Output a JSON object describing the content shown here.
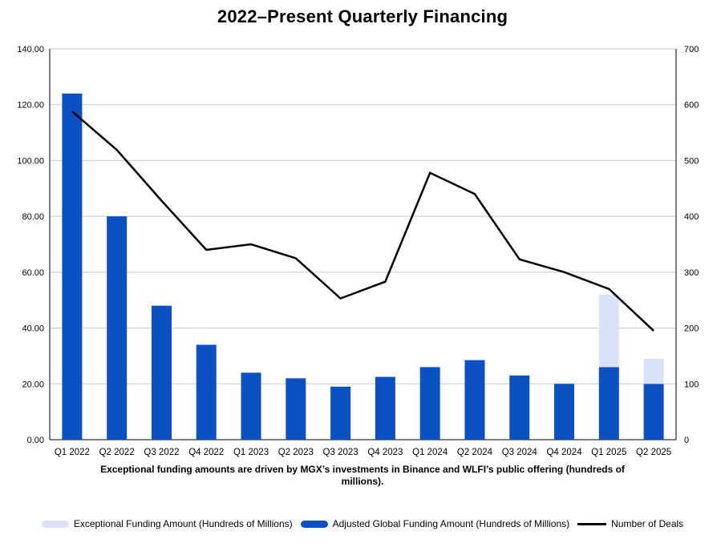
{
  "caption": {
    "line1": "Exceptional funding amounts are driven by MGX’s investments in Binance and WLFI’s public offering (hundreds of",
    "line2": "millions)."
  },
  "colors": {
    "plot_background": "#ffffff",
    "gridline": "#c9c9c9",
    "axis": "#000000"
  },
  "chart_data": {
    "type": "combo: stacked bar + line, dual y-axes",
    "title": "2022–Present Quarterly Financing",
    "note": "Exceptional funding amounts are driven by MGX’s investments in Binance and WLFI’s public offering (hundreds of millions).",
    "categories": [
      "Q1 2022",
      "Q2 2022",
      "Q3 2022",
      "Q4 2022",
      "Q1 2023",
      "Q2 2023",
      "Q3 2023",
      "Q4 2023",
      "Q1 2024",
      "Q2 2024",
      "Q3 2024",
      "Q4 2024",
      "Q1 2025",
      "Q2 2025"
    ],
    "series": [
      {
        "name": "Exceptional Funding Amount (Hundreds of Millions)",
        "type": "bar",
        "stack": 1,
        "axis": "left",
        "color": "#d8e3f8",
        "values": [
          0,
          0,
          0,
          0,
          0,
          0,
          0,
          0,
          0,
          0,
          0,
          0,
          26,
          9
        ]
      },
      {
        "name": "Adjusted Global Funding Amount (Hundreds of Millions)",
        "type": "bar",
        "stack": 0,
        "axis": "left",
        "color": "#0b51c4",
        "values": [
          124,
          80,
          48,
          34,
          24,
          22,
          19,
          22.5,
          26,
          28.5,
          23,
          20,
          26,
          20
        ]
      },
      {
        "name": "Number of Deals",
        "type": "line",
        "axis": "right",
        "color": "#000000",
        "values": [
          588,
          519,
          428,
          340,
          350,
          325,
          253,
          283,
          478,
          440,
          323,
          300,
          270,
          195
        ]
      }
    ],
    "left_axis": {
      "min": 0,
      "max": 140,
      "step": 20,
      "format": "two_decimals"
    },
    "right_axis": {
      "min": 0,
      "max": 700,
      "step": 100,
      "format": "integer"
    },
    "grid": true,
    "legend_position": "bottom"
  }
}
